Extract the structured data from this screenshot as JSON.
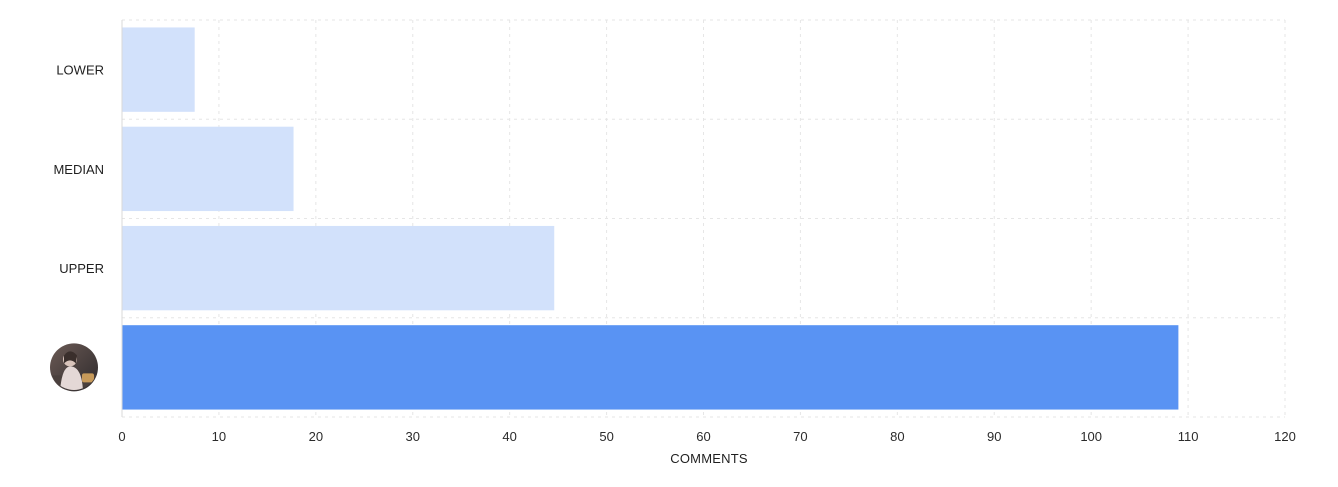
{
  "chart_data": {
    "type": "bar",
    "orientation": "horizontal",
    "categories": [
      "LOWER",
      "MEDIAN",
      "UPPER",
      ""
    ],
    "values": [
      7.5,
      17.7,
      44.6,
      109
    ],
    "xlabel": "COMMENTS",
    "xlim": [
      0,
      120
    ],
    "xticks": [
      "0",
      "10",
      "20",
      "30",
      "40",
      "50",
      "60",
      "70",
      "80",
      "90",
      "100",
      "110",
      "120"
    ],
    "grid": true,
    "colors": {
      "reference_bar": "#d2e1fb",
      "highlight_bar": "#5993f3"
    },
    "highlight_index": 3,
    "highlight_icon": "user-avatar-icon"
  }
}
